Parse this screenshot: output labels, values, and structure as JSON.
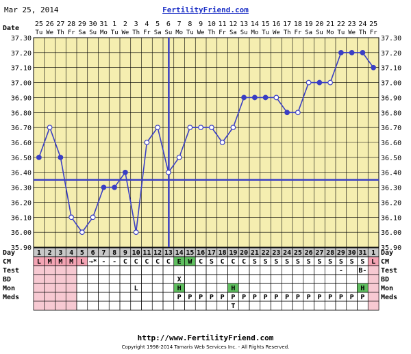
{
  "header": {
    "date": "Mar 25, 2014",
    "site": "FertilityFriend.com"
  },
  "footer": {
    "url": "http://www.FertilityFriend.com",
    "copyright": "Copyright 1998-2014 Tamaris Web Services Inc. - All Rights Reserved."
  },
  "colors": {
    "background": "#f5eeb0",
    "line": "#3a3fc4",
    "grid_line": "#000000",
    "cm_low": "#f4a4b4",
    "cm_peak": "#5fbf5f",
    "row_light": "#f7c9d2"
  },
  "chart_data": {
    "type": "line",
    "ylim": [
      35.9,
      37.3
    ],
    "yticks": [
      "35.90",
      "36.00",
      "36.10",
      "36.20",
      "36.30",
      "36.40",
      "36.50",
      "36.60",
      "36.70",
      "36.80",
      "36.90",
      "37.00",
      "37.10",
      "37.20",
      "37.30"
    ],
    "date_label": "Date",
    "dates": [
      "25",
      "26",
      "27",
      "28",
      "29",
      "30",
      "31",
      "1",
      "2",
      "3",
      "4",
      "5",
      "6",
      "7",
      "8",
      "9",
      "10",
      "11",
      "12",
      "13",
      "14",
      "15",
      "16",
      "17",
      "18",
      "19",
      "20",
      "21",
      "22",
      "23",
      "24",
      "25"
    ],
    "weekdays": [
      "Tu",
      "We",
      "Th",
      "Fr",
      "Sa",
      "Su",
      "Mo",
      "Tu",
      "We",
      "Th",
      "Fr",
      "Sa",
      "Su",
      "Mo",
      "Tu",
      "We",
      "Th",
      "Fr",
      "Sa",
      "Su",
      "Mo",
      "Tu",
      "We",
      "Th",
      "Fr",
      "Sa",
      "Su",
      "Mo",
      "Tu",
      "We",
      "Th",
      "Fr"
    ],
    "days": [
      "1",
      "2",
      "3",
      "4",
      "5",
      "6",
      "7",
      "8",
      "9",
      "10",
      "11",
      "12",
      "13",
      "14",
      "15",
      "16",
      "17",
      "18",
      "19",
      "20",
      "21",
      "22",
      "23",
      "24",
      "25",
      "26",
      "27",
      "28",
      "29",
      "30",
      "31",
      "1"
    ],
    "temps": [
      36.5,
      36.7,
      36.5,
      36.1,
      36.0,
      36.1,
      36.3,
      36.3,
      36.4,
      36.0,
      36.6,
      36.7,
      36.4,
      36.5,
      36.7,
      36.7,
      36.7,
      36.6,
      36.7,
      36.9,
      36.9,
      36.9,
      36.9,
      36.8,
      36.8,
      37.0,
      37.0,
      37.0,
      37.2,
      37.2,
      37.2,
      37.1
    ],
    "filled": [
      true,
      false,
      true,
      false,
      false,
      false,
      true,
      true,
      true,
      false,
      false,
      false,
      false,
      false,
      false,
      false,
      false,
      false,
      false,
      true,
      true,
      true,
      false,
      true,
      false,
      false,
      true,
      false,
      true,
      true,
      true,
      true
    ],
    "connected": [
      false,
      true,
      true,
      true,
      true,
      true,
      true,
      true,
      true,
      true,
      true,
      true,
      true,
      true,
      true,
      true,
      true,
      true,
      true,
      true,
      true,
      true,
      true,
      true,
      true,
      true,
      true,
      true,
      true,
      true,
      true,
      true
    ],
    "coverline": 36.35,
    "ovulation_index": 12,
    "rows": {
      "day": "Day",
      "cm": "CM",
      "test": "Test",
      "bd": "BD",
      "mon": "Mon",
      "meds": "Meds"
    },
    "cm": [
      "L",
      "M",
      "M",
      "M",
      "L",
      "→*",
      "-",
      "-",
      "C",
      "C",
      "C",
      "C",
      "C",
      "E",
      "W",
      "C",
      "S",
      "C",
      "C",
      "C",
      "S",
      "S",
      "S",
      "S",
      "S",
      "S",
      "S",
      "S",
      "S",
      "S",
      "S",
      "L"
    ],
    "cm_style": [
      "low",
      "low",
      "low",
      "low",
      "low",
      "",
      "",
      "",
      "",
      "",
      "",
      "",
      "",
      "peak",
      "peak",
      "",
      "",
      "",
      "",
      "",
      "",
      "",
      "",
      "",
      "",
      "",
      "",
      "",
      "",
      "",
      "",
      "low"
    ],
    "test": [
      "",
      "",
      "",
      "",
      "",
      "",
      "",
      "",
      "",
      "",
      "",
      "",
      "",
      "",
      "",
      "",
      "",
      "",
      "",
      "",
      "",
      "",
      "",
      "",
      "",
      "",
      "",
      "",
      "-",
      "",
      "B-",
      ""
    ],
    "bd": [
      "",
      "",
      "",
      "",
      "",
      "",
      "",
      "",
      "",
      "",
      "",
      "",
      "",
      "X",
      "",
      "",
      "",
      "",
      "",
      "",
      "",
      "",
      "",
      "",
      "",
      "",
      "",
      "",
      "",
      "",
      "",
      ""
    ],
    "mon": [
      "",
      "",
      "",
      "",
      "",
      "",
      "",
      "",
      "",
      "L",
      "",
      "",
      "",
      "H",
      "",
      "",
      "",
      "",
      "H",
      "",
      "",
      "",
      "",
      "",
      "",
      "",
      "",
      "",
      "",
      "",
      "H",
      ""
    ],
    "mon_style": [
      "",
      "",
      "",
      "",
      "",
      "",
      "",
      "",
      "",
      "",
      "",
      "",
      "",
      "peak",
      "",
      "",
      "",
      "",
      "peak",
      "",
      "",
      "",
      "",
      "",
      "",
      "",
      "",
      "",
      "",
      "",
      "peak",
      ""
    ],
    "meds": [
      "",
      "",
      "",
      "",
      "",
      "",
      "",
      "",
      "",
      "",
      "",
      "",
      "",
      "P",
      "P",
      "P",
      "P",
      "P",
      "P",
      "P",
      "P",
      "P",
      "P",
      "P",
      "P",
      "P",
      "P",
      "P",
      "P",
      "P",
      "P",
      ""
    ],
    "meds2": [
      "",
      "",
      "",
      "",
      "",
      "",
      "",
      "",
      "",
      "",
      "",
      "",
      "",
      "",
      "",
      "",
      "",
      "",
      "T",
      "",
      "",
      "",
      "",
      "",
      "",
      "",
      "",
      "",
      "",
      "",
      "",
      ""
    ]
  }
}
